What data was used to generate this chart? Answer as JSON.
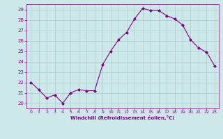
{
  "x": [
    0,
    1,
    2,
    3,
    4,
    5,
    6,
    7,
    8,
    9,
    10,
    11,
    12,
    13,
    14,
    15,
    16,
    17,
    18,
    19,
    20,
    21,
    22,
    23
  ],
  "y": [
    22.0,
    21.3,
    20.5,
    20.8,
    20.0,
    21.0,
    21.3,
    21.2,
    21.2,
    23.7,
    25.0,
    26.1,
    26.8,
    28.1,
    29.1,
    28.9,
    28.9,
    28.4,
    28.1,
    27.5,
    26.1,
    25.3,
    24.9,
    23.6
  ],
  "line_color": "#800080",
  "marker": "D",
  "marker_size": 2,
  "bg_color": "#cce8e8",
  "grid_color": "#aacccc",
  "xlabel": "Windchill (Refroidissement éolien,°C)",
  "xlabel_color": "#800080",
  "tick_color": "#800080",
  "ylim": [
    19.5,
    29.5
  ],
  "xlim": [
    -0.5,
    23.5
  ],
  "yticks": [
    20,
    21,
    22,
    23,
    24,
    25,
    26,
    27,
    28,
    29
  ],
  "xticks": [
    0,
    1,
    2,
    3,
    4,
    5,
    6,
    7,
    8,
    9,
    10,
    11,
    12,
    13,
    14,
    15,
    16,
    17,
    18,
    19,
    20,
    21,
    22,
    23
  ],
  "xtick_labels": [
    "0",
    "1",
    "2",
    "3",
    "4",
    "5",
    "6",
    "7",
    "8",
    "9",
    "10",
    "11",
    "12",
    "13",
    "14",
    "15",
    "16",
    "17",
    "18",
    "19",
    "20",
    "21",
    "22",
    "23"
  ]
}
